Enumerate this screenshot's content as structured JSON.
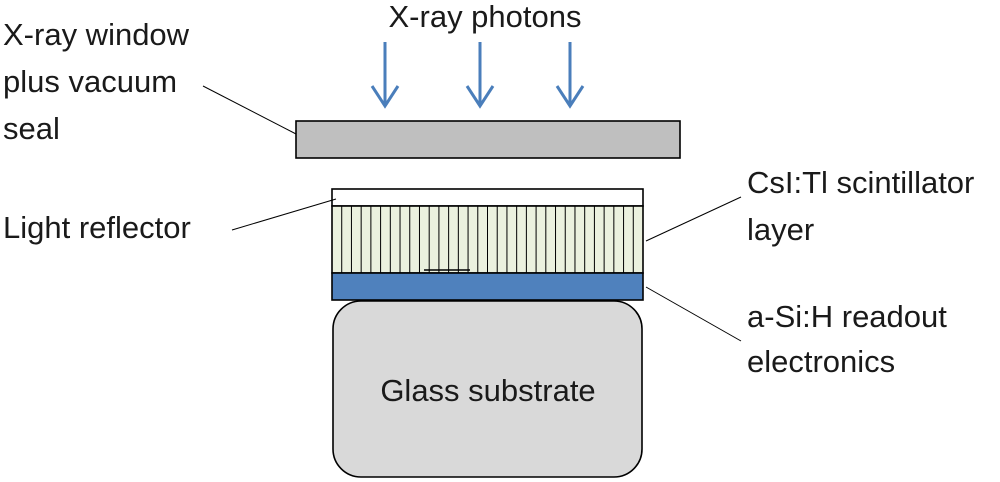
{
  "labels": {
    "photons": "X-ray photons",
    "window": [
      "X-ray window",
      "plus vacuum",
      "seal"
    ],
    "reflector": "Light reflector",
    "scintillator": [
      "CsI:Tl scintillator",
      "layer"
    ],
    "readout": [
      "a-Si:H readout",
      "electronics"
    ],
    "substrate": "Glass substrate"
  },
  "colors": {
    "arrow": "#4a7ebb",
    "window_fill": "#bfbfbf",
    "scintillator_fill": "#ebf1de",
    "readout_fill": "#4f81bd",
    "substrate_fill": "#d9d9d9",
    "outline": "#000000",
    "reflector_fill": "#ffffff"
  },
  "scintillator_columns": 32
}
